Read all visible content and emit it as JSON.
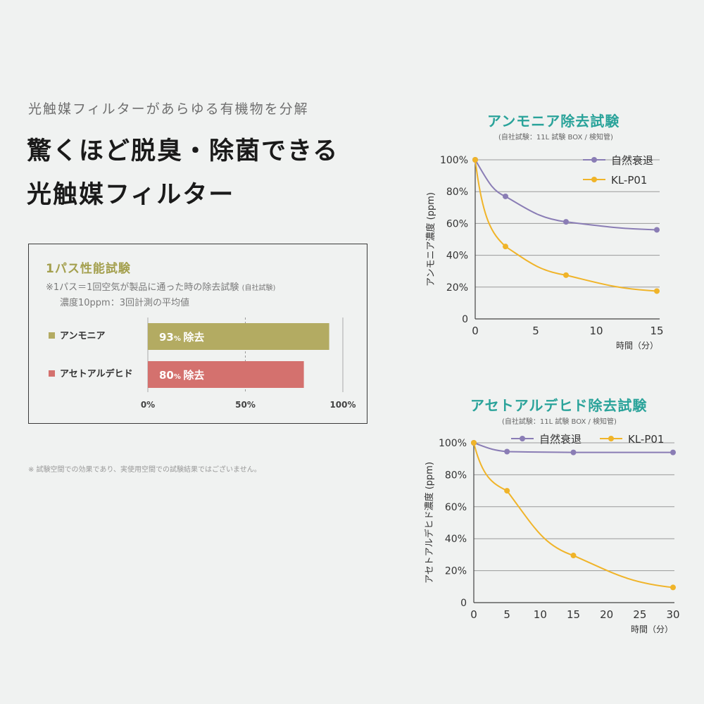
{
  "header": {
    "kicker": "光触媒フィルターがあらゆる有機物を分解",
    "headline_line1": "驚くほど脱臭・除菌できる",
    "headline_line2": "光触媒フィルター"
  },
  "box": {
    "title": "1パス性能試験",
    "note_line1": "※1パス＝1回空気が製品に通った時の除去試験",
    "note_line1_sub": "(自社試験)",
    "note_line2": "濃度10ppm：3回計測の平均値"
  },
  "footnote": "※ 試験空間での効果であり、実使用空間での試験結果ではございません。",
  "colors": {
    "natural": "#8a7db5",
    "product": "#f0b429",
    "ammonia_bar": "#b3ab62",
    "acet_bar": "#d4716e",
    "title_teal": "#2aa39a"
  },
  "chart_data": [
    {
      "type": "bar",
      "orientation": "horizontal",
      "categories": [
        "アンモニア",
        "アセトアルデヒド"
      ],
      "values": [
        93,
        80
      ],
      "value_labels": [
        "93",
        "80"
      ],
      "value_unit": "%",
      "value_suffix": "除去",
      "xlim": [
        0,
        100
      ],
      "xticks": [
        "0%",
        "50%",
        "100%"
      ],
      "colors": [
        "#b3ab62",
        "#d4716e"
      ]
    },
    {
      "type": "line",
      "title": "アンモニア除去試験",
      "subtitle": "(自社試験：11L 試験 BOX / 検知管)",
      "xlabel": "時間（分）",
      "ylabel": "アンモニア濃度 (ppm)",
      "xlim": [
        0,
        15
      ],
      "ylim": [
        0,
        100
      ],
      "xticks": [
        0,
        5,
        10,
        15
      ],
      "yticks": [
        "0",
        "20%",
        "40%",
        "60%",
        "80%",
        "100%"
      ],
      "legend_position": "top-right",
      "series": [
        {
          "name": "自然衰退",
          "color": "#8a7db5",
          "x": [
            0,
            2.5,
            7.5,
            15
          ],
          "y": [
            100,
            77,
            61,
            56
          ]
        },
        {
          "name": "KL-P01",
          "color": "#f0b429",
          "x": [
            0,
            2.5,
            7.5,
            15
          ],
          "y": [
            100,
            45.5,
            27.5,
            17.5
          ]
        }
      ]
    },
    {
      "type": "line",
      "title": "アセトアルデヒド除去試験",
      "subtitle": "(自社試験：11L 試験 BOX / 検知管)",
      "xlabel": "時間（分）",
      "ylabel": "アセトアルデヒド濃度 (ppm)",
      "xlim": [
        0,
        30
      ],
      "ylim": [
        0,
        100
      ],
      "xticks": [
        0,
        5,
        10,
        15,
        20,
        25,
        30
      ],
      "yticks": [
        "0",
        "20%",
        "40%",
        "60%",
        "80%",
        "100%"
      ],
      "legend_position": "top-right",
      "series": [
        {
          "name": "自然衰退",
          "color": "#8a7db5",
          "x": [
            0,
            5,
            15,
            30
          ],
          "y": [
            100,
            94.5,
            94,
            94
          ]
        },
        {
          "name": "KL-P01",
          "color": "#f0b429",
          "x": [
            0,
            5,
            15,
            30
          ],
          "y": [
            100,
            70,
            29.5,
            9.5
          ]
        }
      ]
    }
  ]
}
